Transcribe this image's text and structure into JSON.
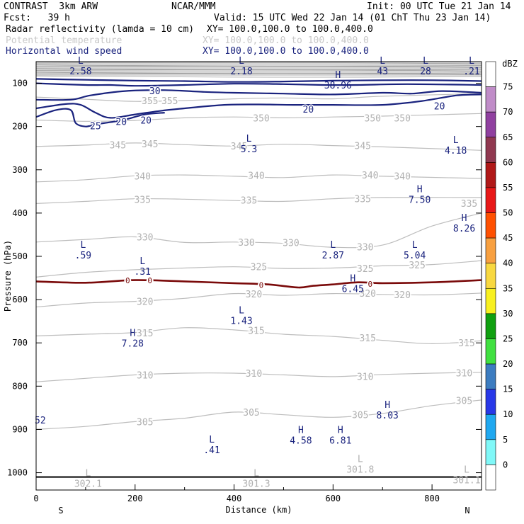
{
  "header": {
    "model": "CONTRAST  3km ARW",
    "org": "NCAR/MMM",
    "init": "Init: 00 UTC Tue 21 Jan 14",
    "fcst": "Fcst:   39 h",
    "valid": "Valid: 15 UTC Wed 22 Jan 14 (01 ChT Thu 23 Jan 14)",
    "fields": [
      {
        "name": "Radar reflectivity (lamda = 10 cm)",
        "xy": "XY= 100.0,100.0 to 100.0,400.0",
        "color": "#000000"
      },
      {
        "name": "Potential temperature",
        "xy": "XY= 100.0,100.0 to 100.0,400.0",
        "color": "#c8c8c8"
      },
      {
        "name": "Horizontal wind speed",
        "xy": "XY= 100.0,100.0 to 100.0,400.0",
        "color": "#1a237e"
      }
    ]
  },
  "chart_data": {
    "type": "contour",
    "xlabel": "Distance (km)",
    "ylabel": "Pressure (hPa)",
    "xlim": [
      0,
      900
    ],
    "ylim": [
      1040,
      50
    ],
    "x_ticks": [
      "0",
      "200",
      "400",
      "600",
      "800"
    ],
    "y_ticks": [
      "100",
      "200",
      "300",
      "400",
      "500",
      "600",
      "700",
      "800",
      "900",
      "1000"
    ],
    "x_end_labels": {
      "left": "S",
      "right": "N"
    },
    "colorbar": {
      "unit": "dBZ",
      "levels": [
        "75",
        "70",
        "65",
        "60",
        "55",
        "50",
        "45",
        "40",
        "35",
        "30",
        "25",
        "20",
        "15",
        "10",
        "5",
        "0"
      ],
      "colors": [
        "#ffffff",
        "#c08cc8",
        "#9040a0",
        "#903850",
        "#b01818",
        "#e81818",
        "#ff5000",
        "#f8a040",
        "#f8d840",
        "#f8f020",
        "#10a010",
        "#40e040",
        "#3c7cc0",
        "#2838e8",
        "#20a8f0",
        "#80f8f8",
        "#ffffff"
      ]
    },
    "theta_lines": [
      {
        "label": "355",
        "points": [
          [
            0,
            132
          ],
          [
            100,
            137
          ],
          [
            200,
            142
          ],
          [
            300,
            140
          ],
          [
            400,
            136
          ],
          [
            500,
            134
          ],
          [
            600,
            136
          ],
          [
            700,
            130
          ],
          [
            900,
            124
          ]
        ]
      },
      {
        "label": "350",
        "points": [
          [
            0,
            185
          ],
          [
            100,
            188
          ],
          [
            200,
            186
          ],
          [
            300,
            180
          ],
          [
            400,
            178
          ],
          [
            500,
            180
          ],
          [
            600,
            178
          ],
          [
            700,
            176
          ],
          [
            900,
            170
          ]
        ]
      },
      {
        "label": "345",
        "points": [
          [
            0,
            246
          ],
          [
            100,
            243
          ],
          [
            200,
            238
          ],
          [
            300,
            242
          ],
          [
            400,
            245
          ],
          [
            500,
            241
          ],
          [
            600,
            244
          ],
          [
            700,
            247
          ],
          [
            900,
            255
          ]
        ]
      },
      {
        "label": "340",
        "points": [
          [
            0,
            328
          ],
          [
            100,
            323
          ],
          [
            200,
            314
          ],
          [
            300,
            312
          ],
          [
            400,
            315
          ],
          [
            500,
            318
          ],
          [
            600,
            312
          ],
          [
            700,
            315
          ],
          [
            900,
            320
          ]
        ]
      },
      {
        "label": "335",
        "points": [
          [
            0,
            378
          ],
          [
            100,
            373
          ],
          [
            200,
            367
          ],
          [
            300,
            368
          ],
          [
            400,
            371
          ],
          [
            500,
            373
          ],
          [
            600,
            367
          ],
          [
            700,
            364
          ],
          [
            900,
            364
          ]
        ]
      },
      {
        "label": "330",
        "points": [
          [
            0,
            467
          ],
          [
            100,
            461
          ],
          [
            200,
            455
          ],
          [
            300,
            468
          ],
          [
            400,
            467
          ],
          [
            500,
            470
          ],
          [
            600,
            479
          ],
          [
            700,
            474
          ],
          [
            800,
            430
          ],
          [
            900,
            400
          ]
        ]
      },
      {
        "label": "325",
        "points": [
          [
            0,
            548
          ],
          [
            100,
            537
          ],
          [
            200,
            531
          ],
          [
            300,
            527
          ],
          [
            400,
            524
          ],
          [
            500,
            528
          ],
          [
            600,
            527
          ],
          [
            700,
            522
          ],
          [
            800,
            519
          ],
          [
            900,
            510
          ]
        ]
      },
      {
        "label": "320",
        "points": [
          [
            0,
            617
          ],
          [
            100,
            608
          ],
          [
            200,
            604
          ],
          [
            300,
            597
          ],
          [
            400,
            586
          ],
          [
            500,
            590
          ],
          [
            600,
            586
          ],
          [
            700,
            588
          ],
          [
            800,
            589
          ],
          [
            900,
            585
          ]
        ]
      },
      {
        "label": "315",
        "points": [
          [
            0,
            684
          ],
          [
            100,
            680
          ],
          [
            200,
            676
          ],
          [
            300,
            665
          ],
          [
            400,
            670
          ],
          [
            500,
            680
          ],
          [
            600,
            685
          ],
          [
            700,
            694
          ],
          [
            800,
            702
          ],
          [
            900,
            695
          ]
        ]
      },
      {
        "label": "310",
        "points": [
          [
            0,
            790
          ],
          [
            100,
            782
          ],
          [
            200,
            774
          ],
          [
            300,
            770
          ],
          [
            400,
            770
          ],
          [
            500,
            774
          ],
          [
            600,
            778
          ],
          [
            700,
            773
          ],
          [
            800,
            770
          ],
          [
            900,
            768
          ]
        ]
      },
      {
        "label": "305",
        "points": [
          [
            0,
            900
          ],
          [
            100,
            893
          ],
          [
            200,
            882
          ],
          [
            300,
            874
          ],
          [
            400,
            860
          ],
          [
            500,
            866
          ],
          [
            600,
            872
          ],
          [
            700,
            863
          ],
          [
            800,
            845
          ],
          [
            900,
            832
          ]
        ]
      }
    ],
    "theta_labels": [
      {
        "x": 230,
        "p": 140,
        "text": "355"
      },
      {
        "x": 270,
        "p": 140,
        "text": "355"
      },
      {
        "x": 455,
        "p": 180,
        "text": "350"
      },
      {
        "x": 680,
        "p": 180,
        "text": "350"
      },
      {
        "x": 740,
        "p": 180,
        "text": "350"
      },
      {
        "x": 165,
        "p": 242,
        "text": "345"
      },
      {
        "x": 230,
        "p": 240,
        "text": "345"
      },
      {
        "x": 410,
        "p": 245,
        "text": "345"
      },
      {
        "x": 660,
        "p": 244,
        "text": "345"
      },
      {
        "x": 215,
        "p": 314,
        "text": "340"
      },
      {
        "x": 445,
        "p": 313,
        "text": "340"
      },
      {
        "x": 675,
        "p": 312,
        "text": "340"
      },
      {
        "x": 740,
        "p": 314,
        "text": "340"
      },
      {
        "x": 215,
        "p": 368,
        "text": "335"
      },
      {
        "x": 430,
        "p": 370,
        "text": "335"
      },
      {
        "x": 660,
        "p": 367,
        "text": "335"
      },
      {
        "x": 875,
        "p": 377,
        "text": "335"
      },
      {
        "x": 220,
        "p": 455,
        "text": "330"
      },
      {
        "x": 425,
        "p": 467,
        "text": "330"
      },
      {
        "x": 515,
        "p": 468,
        "text": "330"
      },
      {
        "x": 665,
        "p": 478,
        "text": "330"
      },
      {
        "x": 450,
        "p": 524,
        "text": "325"
      },
      {
        "x": 665,
        "p": 528,
        "text": "325"
      },
      {
        "x": 770,
        "p": 520,
        "text": "325"
      },
      {
        "x": 220,
        "p": 604,
        "text": "320"
      },
      {
        "x": 440,
        "p": 587,
        "text": "320"
      },
      {
        "x": 670,
        "p": 585,
        "text": "320"
      },
      {
        "x": 740,
        "p": 588,
        "text": "320"
      },
      {
        "x": 220,
        "p": 677,
        "text": "315"
      },
      {
        "x": 445,
        "p": 671,
        "text": "315"
      },
      {
        "x": 670,
        "p": 688,
        "text": "315"
      },
      {
        "x": 870,
        "p": 700,
        "text": "315"
      },
      {
        "x": 220,
        "p": 774,
        "text": "310"
      },
      {
        "x": 440,
        "p": 770,
        "text": "310"
      },
      {
        "x": 665,
        "p": 777,
        "text": "310"
      },
      {
        "x": 865,
        "p": 769,
        "text": "310"
      },
      {
        "x": 220,
        "p": 882,
        "text": "305"
      },
      {
        "x": 435,
        "p": 860,
        "text": "305"
      },
      {
        "x": 655,
        "p": 866,
        "text": "305"
      },
      {
        "x": 865,
        "p": 833,
        "text": "305"
      }
    ],
    "theta_extrema": [
      {
        "x": 105,
        "p": 1008,
        "mark": "L",
        "value": "302.1"
      },
      {
        "x": 445,
        "p": 1008,
        "mark": "L",
        "value": "301.3"
      },
      {
        "x": 655,
        "p": 975,
        "mark": "L",
        "value": "301.8"
      },
      {
        "x": 870,
        "p": 1000,
        "mark": "L",
        "value": "301.1"
      }
    ],
    "wind_contours": [
      {
        "label": "30",
        "points": [
          [
            0,
            90
          ],
          [
            100,
            92
          ],
          [
            200,
            94
          ],
          [
            300,
            95
          ],
          [
            400,
            97
          ],
          [
            500,
            96
          ],
          [
            600,
            94
          ],
          [
            700,
            93
          ],
          [
            800,
            93
          ],
          [
            900,
            95
          ]
        ]
      },
      {
        "label": "30",
        "points": [
          [
            0,
            100
          ],
          [
            100,
            104
          ],
          [
            150,
            104
          ],
          [
            200,
            106
          ],
          [
            300,
            104
          ],
          [
            400,
            101
          ],
          [
            500,
            102
          ],
          [
            580,
            104
          ],
          [
            650,
            104
          ],
          [
            750,
            102
          ],
          [
            900,
            104
          ]
        ]
      },
      {
        "label": "20",
        "points": [
          [
            0,
            138
          ],
          [
            70,
            138
          ],
          [
            110,
            128
          ],
          [
            180,
            118
          ],
          [
            260,
            116
          ],
          [
            340,
            120
          ],
          [
            400,
            122
          ],
          [
            500,
            124
          ],
          [
            600,
            126
          ],
          [
            700,
            122
          ],
          [
            760,
            124
          ],
          [
            820,
            118
          ],
          [
            900,
            122
          ]
        ]
      },
      {
        "label": "20",
        "points": [
          [
            0,
            158
          ],
          [
            60,
            148
          ],
          [
            90,
            150
          ],
          [
            120,
            168
          ],
          [
            150,
            180
          ],
          [
            200,
            172
          ],
          [
            250,
            164
          ],
          [
            300,
            158
          ],
          [
            380,
            150
          ],
          [
            450,
            149
          ],
          [
            520,
            150
          ],
          [
            600,
            150
          ],
          [
            700,
            150
          ],
          [
            780,
            141
          ],
          [
            850,
            128
          ],
          [
            900,
            126
          ]
        ]
      },
      {
        "label": "25",
        "points": [
          [
            0,
            178
          ],
          [
            40,
            162
          ],
          [
            70,
            162
          ],
          [
            80,
            192
          ],
          [
            100,
            200
          ],
          [
            120,
            195
          ],
          [
            150,
            190
          ],
          [
            180,
            184
          ],
          [
            220,
            172
          ],
          [
            260,
            168
          ]
        ]
      }
    ],
    "wind_labels": [
      {
        "x": 240,
        "p": 117,
        "text": "30"
      },
      {
        "x": 120,
        "p": 198,
        "text": "25"
      },
      {
        "x": 172,
        "p": 188,
        "text": "20"
      },
      {
        "x": 222,
        "p": 185,
        "text": "20"
      },
      {
        "x": 550,
        "p": 160,
        "text": "20"
      },
      {
        "x": 815,
        "p": 152,
        "text": "20"
      }
    ],
    "wind_extrema": [
      {
        "x": 90,
        "p": 55,
        "mark": "L",
        "value": "2.58"
      },
      {
        "x": 415,
        "p": 55,
        "mark": "L",
        "value": "2.18"
      },
      {
        "x": 700,
        "p": 55,
        "mark": "L",
        "value": "43"
      },
      {
        "x": 787,
        "p": 55,
        "mark": "L",
        "value": "28"
      },
      {
        "x": 880,
        "p": 55,
        "mark": "L",
        "value": ".21"
      },
      {
        "x": 610,
        "p": 88,
        "mark": "H",
        "value": "38.96"
      },
      {
        "x": 430,
        "p": 235,
        "mark": "L",
        "value": "5.3"
      },
      {
        "x": 848,
        "p": 238,
        "mark": "L",
        "value": "4.18"
      },
      {
        "x": 775,
        "p": 352,
        "mark": "H",
        "value": "7.50"
      },
      {
        "x": 865,
        "p": 418,
        "mark": "H",
        "value": "8.26"
      },
      {
        "x": 95,
        "p": 480,
        "mark": "L",
        "value": ".59"
      },
      {
        "x": 600,
        "p": 480,
        "mark": "L",
        "value": "2.87"
      },
      {
        "x": 765,
        "p": 480,
        "mark": "L",
        "value": "5.04"
      },
      {
        "x": 215,
        "p": 518,
        "mark": "L",
        "value": ".31"
      },
      {
        "x": 640,
        "p": 558,
        "mark": "H",
        "value": "6.45"
      },
      {
        "x": 415,
        "p": 632,
        "mark": "L",
        "value": "1.43"
      },
      {
        "x": 195,
        "p": 684,
        "mark": "H",
        "value": "7.28"
      },
      {
        "x": 710,
        "p": 850,
        "mark": "H",
        "value": "8.03"
      },
      {
        "x": 535,
        "p": 908,
        "mark": "H",
        "value": "4.58"
      },
      {
        "x": 615,
        "p": 908,
        "mark": "H",
        "value": "6.81"
      },
      {
        "x": 355,
        "p": 930,
        "mark": "L",
        "value": ".41"
      },
      {
        "x": -10,
        "p": 880,
        "mark": "",
        "value": "52"
      }
    ],
    "reflectivity_zero_line": {
      "label": "0",
      "points": [
        [
          0,
          558
        ],
        [
          100,
          561
        ],
        [
          200,
          555
        ],
        [
          300,
          558
        ],
        [
          400,
          562
        ],
        [
          470,
          565
        ],
        [
          530,
          572
        ],
        [
          560,
          568
        ],
        [
          600,
          565
        ],
        [
          650,
          560
        ],
        [
          700,
          562
        ],
        [
          800,
          560
        ],
        [
          900,
          555
        ]
      ],
      "marks": [
        {
          "x": 185,
          "p": 556
        },
        {
          "x": 230,
          "p": 556
        },
        {
          "x": 455,
          "p": 566
        },
        {
          "x": 675,
          "p": 564
        }
      ]
    },
    "surface_pressure": 1010
  }
}
